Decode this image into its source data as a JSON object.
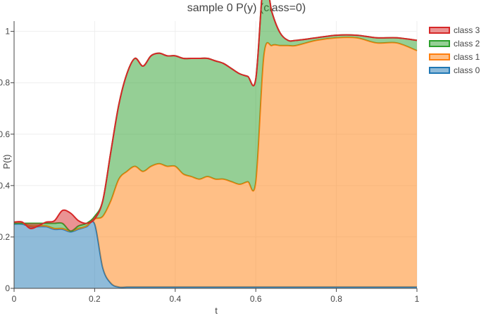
{
  "chart_data": {
    "type": "area",
    "title": "sample 0 P(y) (class=0)",
    "xlabel": "t",
    "ylabel": "P(t)",
    "xlim": [
      0,
      1
    ],
    "ylim": [
      0,
      1.04
    ],
    "xticks": [
      0,
      0.2,
      0.4,
      0.6,
      0.8,
      1
    ],
    "xtick_labels": [
      "0",
      "0.2",
      "0.4",
      "0.6",
      "0.8",
      "1"
    ],
    "yticks": [
      0,
      0.2,
      0.4,
      0.6,
      0.8,
      1
    ],
    "ytick_labels": [
      "0",
      "0.2",
      "0.4",
      "0.6",
      "0.8",
      "1"
    ],
    "grid": true,
    "legend_position": "top-right",
    "x": [
      0,
      0.02,
      0.04,
      0.06,
      0.08,
      0.1,
      0.12,
      0.14,
      0.16,
      0.18,
      0.2,
      0.22,
      0.24,
      0.26,
      0.28,
      0.3,
      0.32,
      0.34,
      0.36,
      0.38,
      0.4,
      0.42,
      0.44,
      0.46,
      0.48,
      0.5,
      0.52,
      0.54,
      0.56,
      0.58,
      0.6,
      0.62,
      0.64,
      0.66,
      0.68,
      0.7,
      0.75,
      0.8,
      0.85,
      0.9,
      0.95,
      1.0
    ],
    "series": [
      {
        "name": "class 0",
        "color": "#1f77b4",
        "fill": "rgba(31,119,180,0.5)",
        "values": [
          0.25,
          0.25,
          0.24,
          0.24,
          0.24,
          0.23,
          0.23,
          0.22,
          0.23,
          0.24,
          0.25,
          0.08,
          0.02,
          0.005,
          0.005,
          0.005,
          0.005,
          0.005,
          0.005,
          0.005,
          0.005,
          0.005,
          0.005,
          0.005,
          0.005,
          0.005,
          0.005,
          0.005,
          0.005,
          0.005,
          0.005,
          0.005,
          0.005,
          0.005,
          0.005,
          0.005,
          0.005,
          0.005,
          0.005,
          0.005,
          0.005,
          0.005
        ]
      },
      {
        "name": "class 1",
        "color": "#ff7f0e",
        "fill": "rgba(255,127,14,0.5)",
        "values": [
          0.003,
          0.003,
          0.003,
          0.003,
          0.003,
          0.003,
          0.003,
          0.003,
          0.003,
          0.003,
          0.02,
          0.2,
          0.32,
          0.42,
          0.45,
          0.47,
          0.45,
          0.47,
          0.48,
          0.47,
          0.47,
          0.44,
          0.43,
          0.42,
          0.43,
          0.42,
          0.42,
          0.41,
          0.4,
          0.41,
          0.41,
          0.9,
          0.94,
          0.94,
          0.94,
          0.94,
          0.96,
          0.97,
          0.97,
          0.95,
          0.95,
          0.92
        ]
      },
      {
        "name": "class 2",
        "color": "#2ca02c",
        "fill": "rgba(44,160,44,0.5)",
        "values": [
          0.0,
          0.0,
          0.01,
          0.01,
          0.01,
          0.02,
          0.02,
          0.0,
          0.01,
          0.01,
          0.01,
          0.06,
          0.19,
          0.29,
          0.38,
          0.42,
          0.41,
          0.43,
          0.43,
          0.43,
          0.43,
          0.45,
          0.46,
          0.47,
          0.46,
          0.46,
          0.45,
          0.44,
          0.43,
          0.41,
          0.4,
          0.3,
          0.13,
          0.05,
          0.02,
          0.02,
          0.01,
          0.01,
          0.01,
          0.02,
          0.02,
          0.04
        ]
      },
      {
        "name": "class 3",
        "color": "#d62728",
        "fill": "rgba(214,39,40,0.5)",
        "values": [
          0.005,
          0.005,
          -0.02,
          -0.01,
          0.005,
          0.01,
          0.05,
          0.07,
          0.02,
          0.0,
          -0.01,
          0.0,
          0.0,
          0.0,
          0.0,
          0.0,
          0.0,
          0.0,
          0.0,
          0.0,
          0.0,
          0.0,
          0.0,
          0.0,
          0.0,
          0.0,
          0.0,
          0.0,
          0.0,
          0.0,
          0.0,
          0.0,
          0.0,
          0.0,
          0.0,
          0.0,
          0.0,
          0.0,
          0.0,
          0.0,
          0.0,
          0.0
        ]
      }
    ]
  }
}
